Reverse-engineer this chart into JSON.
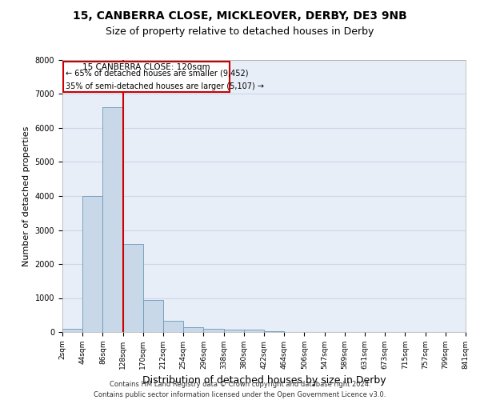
{
  "title": "15, CANBERRA CLOSE, MICKLEOVER, DERBY, DE3 9NB",
  "subtitle": "Size of property relative to detached houses in Derby",
  "xlabel": "Distribution of detached houses by size in Derby",
  "ylabel": "Number of detached properties",
  "footer_line1": "Contains HM Land Registry data © Crown copyright and database right 2024.",
  "footer_line2": "Contains public sector information licensed under the Open Government Licence v3.0.",
  "bar_values": [
    100,
    4000,
    6600,
    2600,
    950,
    320,
    140,
    100,
    80,
    80,
    20,
    5,
    2,
    1,
    0,
    0,
    0,
    0,
    0,
    0
  ],
  "bin_labels": [
    "2sqm",
    "44sqm",
    "86sqm",
    "128sqm",
    "170sqm",
    "212sqm",
    "254sqm",
    "296sqm",
    "338sqm",
    "380sqm",
    "422sqm",
    "464sqm",
    "506sqm",
    "547sqm",
    "589sqm",
    "631sqm",
    "673sqm",
    "715sqm",
    "757sqm",
    "799sqm",
    "841sqm"
  ],
  "bar_color": "#c8d8e8",
  "bar_edge_color": "#6a9ab8",
  "grid_color": "#ccd6e8",
  "background_color": "#e8eef8",
  "annotation_title": "15 CANBERRA CLOSE: 120sqm",
  "annotation_line1": "← 65% of detached houses are smaller (9,452)",
  "annotation_line2": "35% of semi-detached houses are larger (5,107) →",
  "annotation_box_color": "#cc0000",
  "ylim": [
    0,
    8000
  ],
  "yticks": [
    0,
    1000,
    2000,
    3000,
    4000,
    5000,
    6000,
    7000,
    8000
  ],
  "red_line_x": 2.5,
  "title_fontsize": 10,
  "subtitle_fontsize": 9,
  "ylabel_fontsize": 8,
  "xlabel_fontsize": 9,
  "tick_fontsize": 6.5,
  "ytick_fontsize": 7,
  "footer_fontsize": 6
}
